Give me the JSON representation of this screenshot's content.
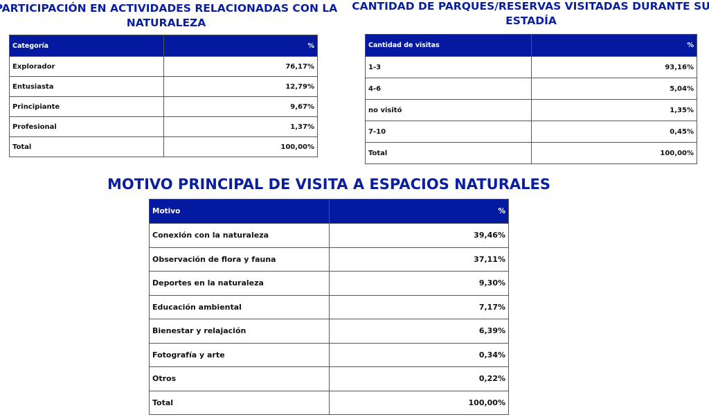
{
  "colors": {
    "title": "#0a1f9e",
    "header_bg": "#0319a0"
  },
  "tables": [
    {
      "title_line1": "PARTICIPACIÓN EN ACTIVIDADES RELACIONADAS CON LA",
      "title_line2": "NATURALEZA",
      "headers": [
        "Categoría",
        "%"
      ],
      "rows": [
        [
          "Explorador",
          "76,17%"
        ],
        [
          "Entusiasta",
          "12,79%"
        ],
        [
          "Principiante",
          "9,67%"
        ],
        [
          "Profesional",
          "1,37%"
        ],
        [
          "Total",
          "100,00%"
        ]
      ]
    },
    {
      "title_line1": "CANTIDAD DE PARQUES/RESERVAS VISITADAS DURANTE SU",
      "title_line2": "ESTADÍA",
      "headers": [
        "Cantidad de visitas",
        "%"
      ],
      "rows": [
        [
          "1-3",
          "93,16%"
        ],
        [
          "4-6",
          "5,04%"
        ],
        [
          "no visitó",
          "1,35%"
        ],
        [
          "7-10",
          "0,45%"
        ],
        [
          "Total",
          "100,00%"
        ]
      ]
    },
    {
      "title_line1": "MOTIVO PRINCIPAL DE VISITA A ESPACIOS NATURALES",
      "headers": [
        "Motivo",
        "%"
      ],
      "rows": [
        [
          "Conexión con la naturaleza",
          "39,46%"
        ],
        [
          "Observación de flora y fauna",
          "37,11%"
        ],
        [
          "Deportes en la naturaleza",
          "9,30%"
        ],
        [
          "Educación ambiental",
          "7,17%"
        ],
        [
          "Bienestar y relajación",
          "6,39%"
        ],
        [
          "Fotografía y arte",
          "0,34%"
        ],
        [
          "Otros",
          "0,22%"
        ],
        [
          "Total",
          "100,00%"
        ]
      ]
    }
  ]
}
